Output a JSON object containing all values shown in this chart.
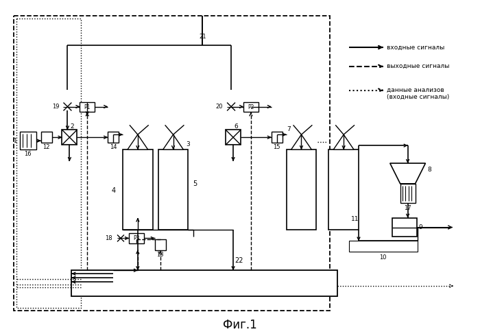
{
  "title": "Фиг.1",
  "legend": [
    {
      "label": "входные сигналы",
      "style": "solid"
    },
    {
      "label": "выходные сигналы",
      "style": "dashed"
    },
    {
      "label": "данные анализов\n(входные сигналы)",
      "style": "dotted"
    }
  ],
  "bg": "#ffffff",
  "lc": "#000000"
}
